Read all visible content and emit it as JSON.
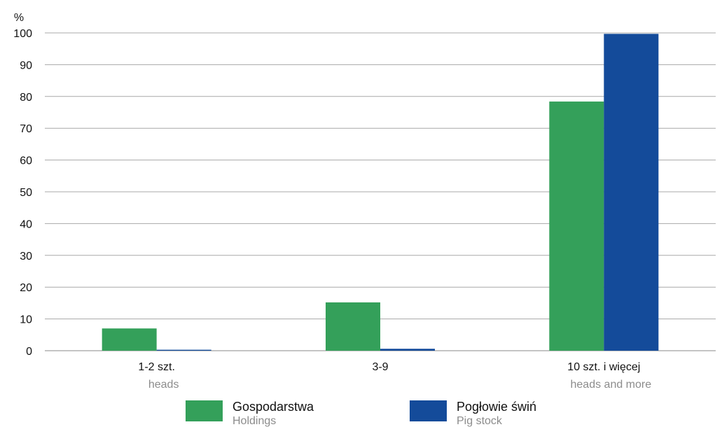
{
  "chart_data": {
    "type": "bar",
    "unit_label": "%",
    "ylim": [
      0,
      100
    ],
    "yticks": [
      0,
      10,
      20,
      30,
      40,
      50,
      60,
      70,
      80,
      90,
      100
    ],
    "grid": true,
    "legend_position": "bottom",
    "categories": [
      {
        "main": "1-2 szt.",
        "sub": "heads"
      },
      {
        "main": "3-9",
        "sub": ""
      },
      {
        "main": "10 szt. i więcej",
        "sub": "heads and more"
      }
    ],
    "series": [
      {
        "name": "Gospodarstwa",
        "name_sub": "Holdings",
        "color": "#34a05a",
        "values": [
          7.0,
          15.2,
          78.4
        ]
      },
      {
        "name": "Pogłowie świń",
        "name_sub": "Pig stock",
        "color": "#144b9a",
        "values": [
          0.3,
          0.6,
          99.7
        ]
      }
    ]
  }
}
